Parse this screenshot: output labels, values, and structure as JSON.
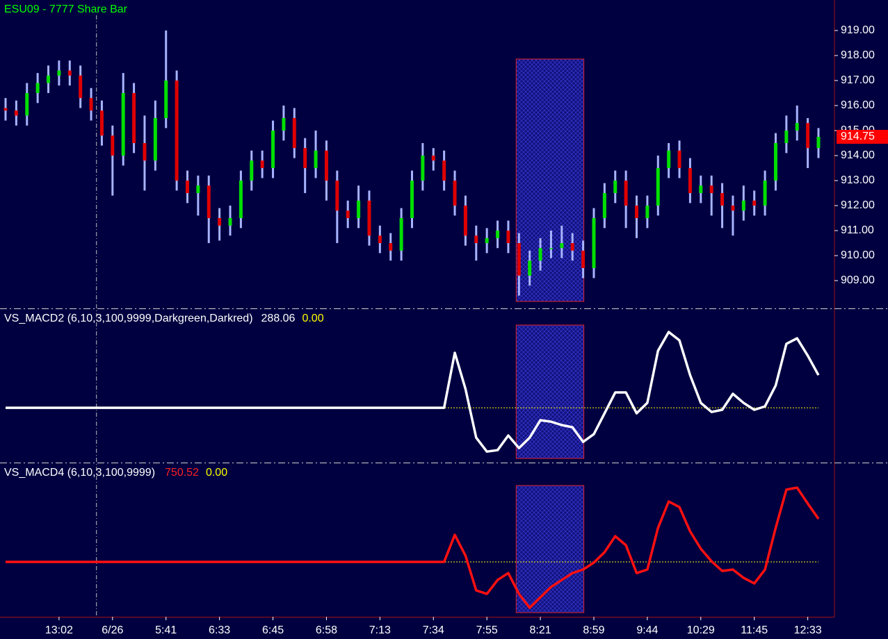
{
  "chart_data": [
    {
      "type": "candlestick",
      "title": "ESU09 - 7777 Share Bar",
      "title_color": "#00ff00",
      "categories": [
        null,
        null,
        null,
        null,
        null,
        "13:02",
        null,
        null,
        null,
        null,
        "6/26",
        null,
        null,
        null,
        null,
        "5:41",
        null,
        null,
        null,
        null,
        "6:33",
        null,
        null,
        null,
        null,
        "6:45",
        null,
        null,
        null,
        null,
        "6:58",
        null,
        null,
        null,
        null,
        "7:13",
        null,
        null,
        null,
        null,
        "7:34",
        null,
        null,
        null,
        null,
        "7:55",
        null,
        null,
        null,
        null,
        "8:21",
        null,
        null,
        null,
        null,
        "8:59",
        null,
        null,
        null,
        null,
        "9:44",
        null,
        null,
        null,
        null,
        "10:29",
        null,
        null,
        null,
        null,
        "11:45",
        null,
        null,
        null,
        null,
        "12:33",
        null
      ],
      "ohlc": [
        [
          915.9,
          916.3,
          915.4,
          915.8
        ],
        [
          915.8,
          916.2,
          915.2,
          915.6
        ],
        [
          915.6,
          916.9,
          915.2,
          916.5
        ],
        [
          916.5,
          917.3,
          916.1,
          916.9
        ],
        [
          916.9,
          917.6,
          916.5,
          917.2
        ],
        [
          917.2,
          917.8,
          916.8,
          917.4
        ],
        [
          917.4,
          917.8,
          916.8,
          917.2
        ],
        [
          917.2,
          917.6,
          915.9,
          916.3
        ],
        [
          916.3,
          916.7,
          915.4,
          915.8
        ],
        [
          915.8,
          916.2,
          914.4,
          914.8
        ],
        [
          914.8,
          915.2,
          912.4,
          914.0
        ],
        [
          914.0,
          917.3,
          913.6,
          916.5
        ],
        [
          916.5,
          916.9,
          914.1,
          914.5
        ],
        [
          914.5,
          915.6,
          912.6,
          913.8
        ],
        [
          913.8,
          916.2,
          913.4,
          915.5
        ],
        [
          915.5,
          919.0,
          915.1,
          917.0
        ],
        [
          917.0,
          917.4,
          912.6,
          913.0
        ],
        [
          913.0,
          913.4,
          912.1,
          912.5
        ],
        [
          912.5,
          913.2,
          911.6,
          912.8
        ],
        [
          912.8,
          913.2,
          910.5,
          911.5
        ],
        [
          911.5,
          911.9,
          910.6,
          911.2
        ],
        [
          911.2,
          912.0,
          910.8,
          911.5
        ],
        [
          911.5,
          913.4,
          911.1,
          913.0
        ],
        [
          913.0,
          914.2,
          912.6,
          913.8
        ],
        [
          913.8,
          914.2,
          913.1,
          913.5
        ],
        [
          913.5,
          915.4,
          913.1,
          915.0
        ],
        [
          915.0,
          916.0,
          914.6,
          915.5
        ],
        [
          915.5,
          915.9,
          913.9,
          914.3
        ],
        [
          914.3,
          914.7,
          912.5,
          913.5
        ],
        [
          913.5,
          915.0,
          913.1,
          914.2
        ],
        [
          914.2,
          914.6,
          912.2,
          913.0
        ],
        [
          913.0,
          913.4,
          910.5,
          911.8
        ],
        [
          911.8,
          912.2,
          911.1,
          911.5
        ],
        [
          911.5,
          912.8,
          911.1,
          912.2
        ],
        [
          912.2,
          912.6,
          910.4,
          910.8
        ],
        [
          910.8,
          911.2,
          910.1,
          910.5
        ],
        [
          910.5,
          910.9,
          909.8,
          910.2
        ],
        [
          910.2,
          911.9,
          909.8,
          911.5
        ],
        [
          911.5,
          913.4,
          911.1,
          913.0
        ],
        [
          913.0,
          914.5,
          912.6,
          914.0
        ],
        [
          914.0,
          914.3,
          913.4,
          913.8
        ],
        [
          913.8,
          914.2,
          912.6,
          913.0
        ],
        [
          913.0,
          913.4,
          911.6,
          912.0
        ],
        [
          912.0,
          912.4,
          910.4,
          910.8
        ],
        [
          910.8,
          911.2,
          909.8,
          910.5
        ],
        [
          910.5,
          911.1,
          910.1,
          910.7
        ],
        [
          910.7,
          911.4,
          910.3,
          911.0
        ],
        [
          911.0,
          911.4,
          910.1,
          910.5
        ],
        [
          910.5,
          910.9,
          908.4,
          909.2
        ],
        [
          909.2,
          910.2,
          908.8,
          909.8
        ],
        [
          909.8,
          910.7,
          909.4,
          910.3
        ],
        [
          910.3,
          911.0,
          909.9,
          910.3
        ],
        [
          910.3,
          911.2,
          909.9,
          910.5
        ],
        [
          910.5,
          910.9,
          909.8,
          910.2
        ],
        [
          910.2,
          910.6,
          909.1,
          909.5
        ],
        [
          909.5,
          911.9,
          909.1,
          911.5
        ],
        [
          911.5,
          912.9,
          911.1,
          912.5
        ],
        [
          912.5,
          913.4,
          912.1,
          913.0
        ],
        [
          913.0,
          913.4,
          911.1,
          912.0
        ],
        [
          912.0,
          912.4,
          910.7,
          911.5
        ],
        [
          911.5,
          912.4,
          911.1,
          912.0
        ],
        [
          912.0,
          914.0,
          911.6,
          913.5
        ],
        [
          913.5,
          914.5,
          913.1,
          914.2
        ],
        [
          914.2,
          914.6,
          913.1,
          913.5
        ],
        [
          913.5,
          913.9,
          912.1,
          912.5
        ],
        [
          912.5,
          913.2,
          912.1,
          912.8
        ],
        [
          912.8,
          913.2,
          911.6,
          912.5
        ],
        [
          912.5,
          912.9,
          911.1,
          912.0
        ],
        [
          912.0,
          912.4,
          910.8,
          911.8
        ],
        [
          911.8,
          912.8,
          911.4,
          912.2
        ],
        [
          912.2,
          912.6,
          911.6,
          912.0
        ],
        [
          912.0,
          913.4,
          911.6,
          913.0
        ],
        [
          913.0,
          914.9,
          912.6,
          914.5
        ],
        [
          914.5,
          915.6,
          914.1,
          915.0
        ],
        [
          915.0,
          916.0,
          914.6,
          915.3
        ],
        [
          915.3,
          915.5,
          913.5,
          914.3
        ],
        [
          914.3,
          915.1,
          913.9,
          914.75
        ]
      ],
      "up_color": "#00e000",
      "down_color": "#e00000",
      "wick_color": "#a8b4ff",
      "ylim": [
        907.89,
        920.22
      ],
      "yticks": [
        {
          "value": 909,
          "label": "909.00"
        },
        {
          "value": 910,
          "label": "910.00"
        },
        {
          "value": 911,
          "label": "911.00"
        },
        {
          "value": 912,
          "label": "912.00"
        },
        {
          "value": 913,
          "label": "913.00"
        },
        {
          "value": 914,
          "label": "914.00"
        },
        {
          "value": 915,
          "label": "915.00"
        },
        {
          "value": 916,
          "label": "916.00"
        },
        {
          "value": 917,
          "label": "917.00"
        },
        {
          "value": 918,
          "label": "918.00"
        },
        {
          "value": 919,
          "label": "919.00"
        }
      ],
      "last_price": {
        "value": 914.75,
        "label": "914.75"
      },
      "highlight_range": [
        48,
        54
      ],
      "session_break_after": 8
    },
    {
      "type": "line",
      "title": "VS_MACD2 (6,10,3,100,9999,Darkgreen,Darkred)",
      "readout": "288.06",
      "readout_color": "#ffffff",
      "color": "#ffffff",
      "values": [
        0,
        0,
        0,
        0,
        0,
        0,
        0,
        0,
        0,
        0,
        0,
        0,
        0,
        0,
        0,
        0,
        0,
        0,
        0,
        0,
        0,
        0,
        0,
        0,
        0,
        0,
        0,
        0,
        0,
        0,
        0,
        0,
        0,
        0,
        0,
        0,
        0,
        0,
        0,
        0,
        0,
        0,
        485,
        166,
        -264,
        -387,
        -374,
        -245,
        -356,
        -264,
        -110,
        -123,
        -153,
        -172,
        -301,
        -233,
        -49,
        135,
        135,
        -49,
        43,
        503,
        669,
        595,
        288,
        43,
        -37,
        -18,
        123,
        43,
        -18,
        12,
        196,
        564,
        613,
        460,
        288.06
      ],
      "ylim": [
        -484,
        865
      ],
      "reference_line": {
        "value": 0,
        "label": "0.00",
        "color": "#ffff00"
      }
    },
    {
      "type": "line",
      "title": "VS_MACD4 (6,10,3,100,9999)",
      "readout": "750.52",
      "readout_color": "#ff2020",
      "color": "#ff1010",
      "values": [
        0,
        0,
        0,
        0,
        0,
        0,
        0,
        0,
        0,
        0,
        0,
        0,
        0,
        0,
        0,
        0,
        0,
        0,
        0,
        0,
        0,
        0,
        0,
        0,
        0,
        0,
        0,
        0,
        0,
        0,
        0,
        0,
        0,
        0,
        0,
        0,
        0,
        0,
        0,
        0,
        0,
        0,
        472,
        109,
        -496,
        -557,
        -315,
        -194,
        -557,
        -799,
        -617,
        -436,
        -315,
        -194,
        -133,
        -12,
        169,
        448,
        291,
        -194,
        -133,
        593,
        1053,
        956,
        533,
        230,
        12,
        -157,
        -133,
        -278,
        -375,
        -133,
        593,
        1259,
        1295,
        1017,
        750.52
      ],
      "ylim": [
        -956,
        1707
      ],
      "reference_line": {
        "value": 0,
        "label": "0.00",
        "color": "#ffff00"
      }
    }
  ]
}
